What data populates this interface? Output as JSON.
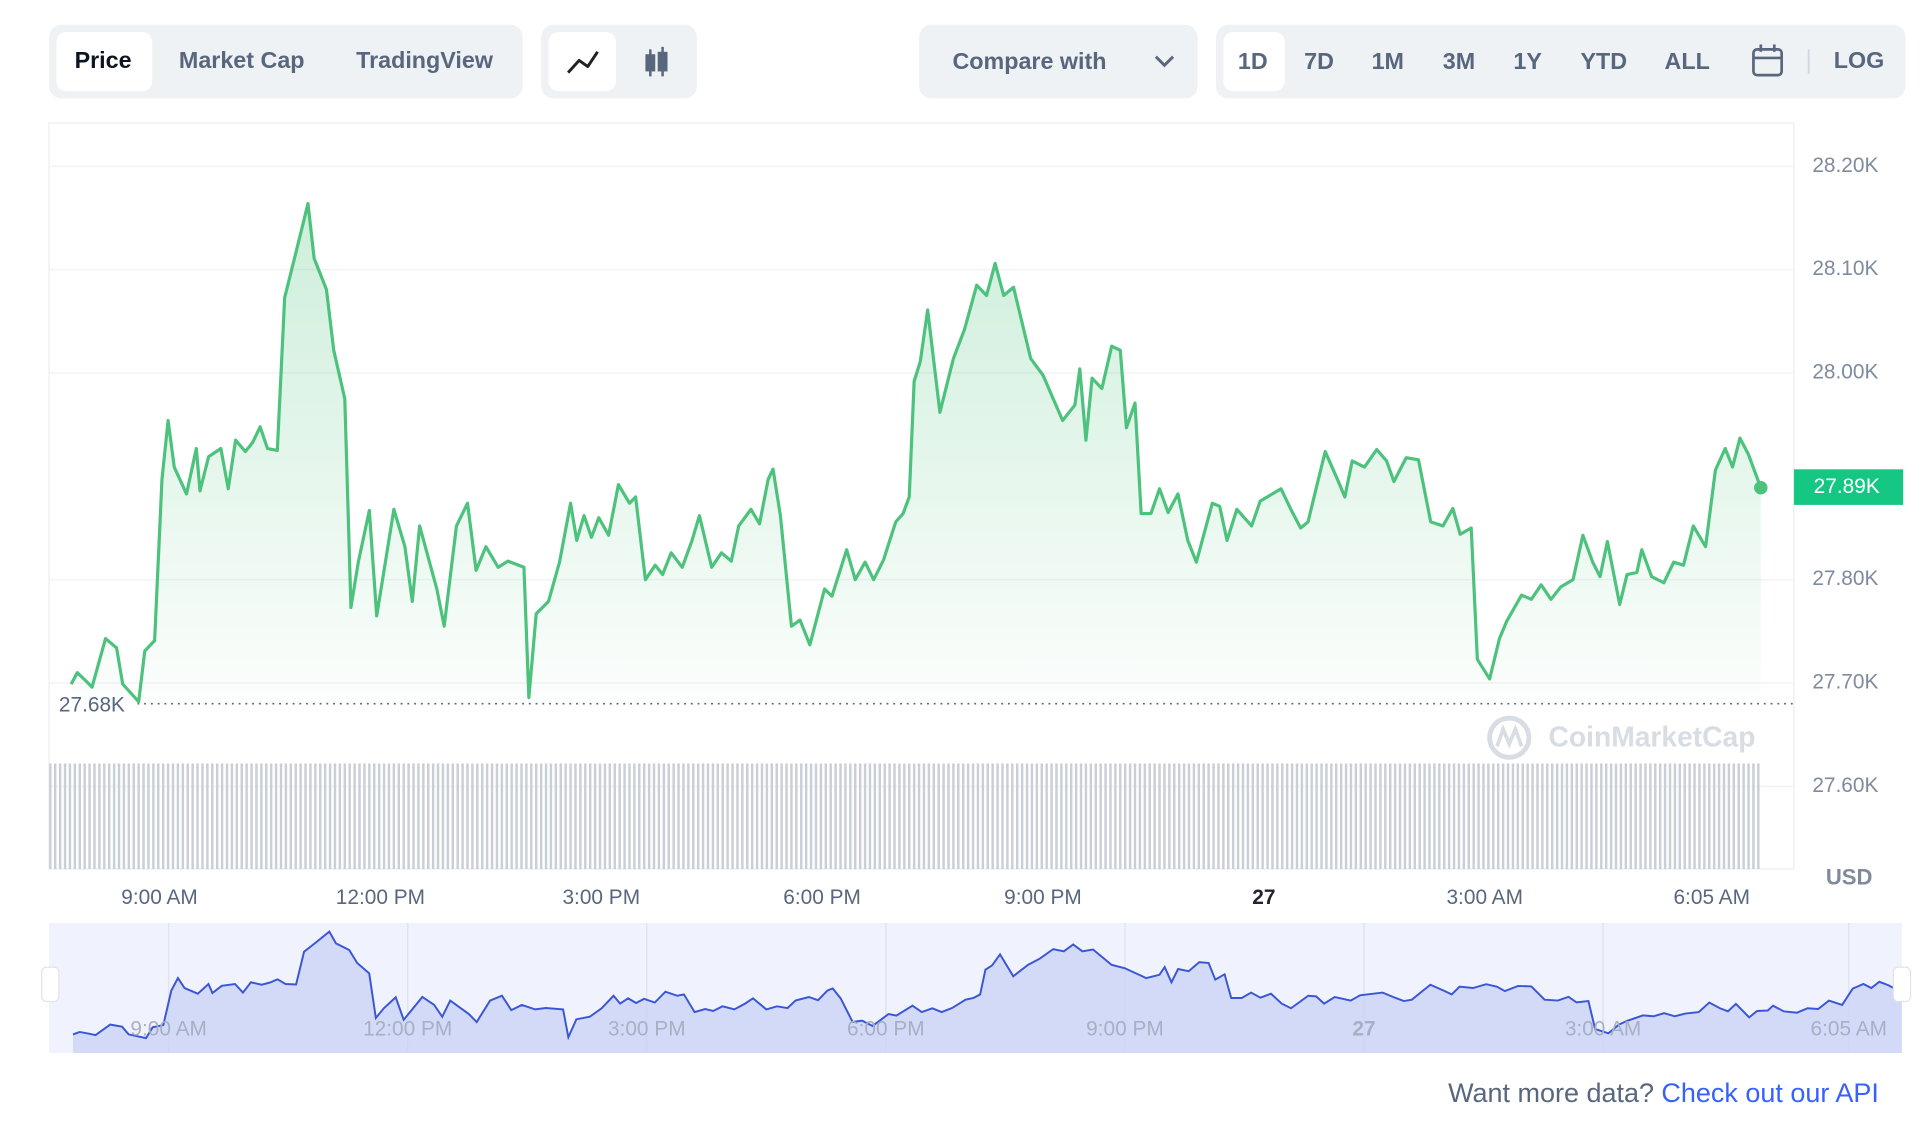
{
  "controls": {
    "view_tabs": [
      "Price",
      "Market Cap",
      "TradingView"
    ],
    "compare": "Compare with",
    "ranges": [
      "1D",
      "7D",
      "1M",
      "3M",
      "1Y",
      "YTD",
      "ALL"
    ],
    "log": "LOG"
  },
  "watermark": "CoinMarketCap",
  "footer": {
    "prompt": "Want more data?",
    "link": "Check out our API"
  },
  "chart_data": {
    "type": "line",
    "color": "#4cc27c",
    "y_unit": "USD",
    "x": [
      468,
      473,
      480,
      485,
      496,
      505,
      510,
      523,
      528,
      536,
      542,
      547,
      552,
      562,
      570,
      573,
      580,
      590,
      596,
      602,
      610,
      616,
      622,
      628,
      636,
      642,
      650,
      661,
      666,
      676,
      682,
      691,
      696,
      702,
      711,
      717,
      731,
      740,
      746,
      752,
      766,
      772,
      782,
      791,
      798,
      806,
      816,
      824,
      837,
      841,
      847,
      857,
      866,
      875,
      880,
      886,
      892,
      898,
      906,
      914,
      923,
      928,
      936,
      944,
      950,
      957,
      966,
      974,
      980,
      990,
      998,
      1006,
      1012,
      1022,
      1029,
      1036,
      1040,
      1046,
      1055,
      1062,
      1070,
      1082,
      1088,
      1100,
      1107,
      1115,
      1122,
      1130,
      1140,
      1146,
      1151,
      1155,
      1160,
      1166,
      1176,
      1187,
      1196,
      1206,
      1214,
      1221,
      1228,
      1236,
      1250,
      1260,
      1276,
      1286,
      1290,
      1295,
      1300,
      1308,
      1316,
      1323,
      1328,
      1335,
      1340,
      1348,
      1355,
      1362,
      1370,
      1378,
      1385,
      1398,
      1404,
      1410,
      1418,
      1430,
      1437,
      1454,
      1462,
      1470,
      1476,
      1484,
      1490,
      1500,
      1506,
      1512,
      1522,
      1532,
      1540,
      1546,
      1556,
      1566,
      1576,
      1586,
      1594,
      1600,
      1609,
      1614,
      1624,
      1632,
      1638,
      1650,
      1658,
      1666,
      1674,
      1682,
      1692,
      1700,
      1708,
      1714,
      1720,
      1730,
      1736,
      1744,
      1748,
      1756,
      1766,
      1774,
      1782,
      1790,
      1800,
      1808,
      1816,
      1822,
      1828,
      1835,
      1845
    ],
    "values": [
      27699,
      27710,
      27702,
      27696,
      27743,
      27734,
      27699,
      27682,
      27731,
      27741,
      27897,
      27954,
      27909,
      27883,
      27927,
      27886,
      27919,
      27927,
      27888,
      27935,
      27924,
      27933,
      27948,
      27927,
      27925,
      28073,
      28111,
      28164,
      28111,
      28081,
      28022,
      27975,
      27773,
      27817,
      27867,
      27765,
      27868,
      27832,
      27779,
      27852,
      27791,
      27755,
      27852,
      27874,
      27809,
      27832,
      27812,
      27818,
      27812,
      27686,
      27767,
      27779,
      27817,
      27874,
      27838,
      27862,
      27841,
      27860,
      27843,
      27892,
      27874,
      27880,
      27800,
      27814,
      27805,
      27826,
      27812,
      27838,
      27862,
      27812,
      27826,
      27818,
      27852,
      27868,
      27854,
      27897,
      27907,
      27862,
      27755,
      27761,
      27737,
      27791,
      27784,
      27829,
      27800,
      27817,
      27800,
      27819,
      27856,
      27864,
      27880,
      27992,
      28011,
      28061,
      27962,
      28014,
      28042,
      28085,
      28075,
      28106,
      28075,
      28083,
      28014,
      27998,
      27954,
      27969,
      28004,
      27935,
      27995,
      27985,
      28026,
      28022,
      27947,
      27971,
      27864,
      27864,
      27888,
      27865,
      27883,
      27838,
      27817,
      27874,
      27871,
      27838,
      27868,
      27852,
      27876,
      27888,
      27868,
      27850,
      27856,
      27895,
      27924,
      27897,
      27880,
      27915,
      27909,
      27926,
      27915,
      27895,
      27918,
      27916,
      27856,
      27852,
      27869,
      27844,
      27850,
      27723,
      27704,
      27743,
      27760,
      27785,
      27781,
      27795,
      27781,
      27793,
      27800,
      27843,
      27817,
      27803,
      27837,
      27776,
      27805,
      27807,
      27829,
      27803,
      27797,
      27817,
      27814,
      27852,
      27832,
      27906,
      27927,
      27909,
      27937,
      27921,
      27889
    ],
    "last_label": "27.89K",
    "low_line": {
      "value": 27680,
      "label": "27.68K"
    },
    "xlim": [
      450,
      1872
    ],
    "xticks": [
      {
        "value": 540,
        "label": "9:00 AM"
      },
      {
        "value": 720,
        "label": "12:00 PM"
      },
      {
        "value": 900,
        "label": "3:00 PM"
      },
      {
        "value": 1080,
        "label": "6:00 PM"
      },
      {
        "value": 1260,
        "label": "9:00 PM"
      },
      {
        "value": 1440,
        "label": "27"
      },
      {
        "value": 1620,
        "label": "3:00 AM"
      },
      {
        "value": 1805,
        "label": "6:05 AM"
      }
    ],
    "ylim": [
      27520,
      28242
    ],
    "yticks": [
      {
        "value": 28200,
        "label": "28.20K"
      },
      {
        "value": 28100,
        "label": "28.10K"
      },
      {
        "value": 28000,
        "label": "28.00K"
      },
      {
        "value": 27800,
        "label": "27.80K"
      },
      {
        "value": 27700,
        "label": "27.70K"
      },
      {
        "value": 27600,
        "label": "27.60K"
      }
    ],
    "grid": true
  }
}
